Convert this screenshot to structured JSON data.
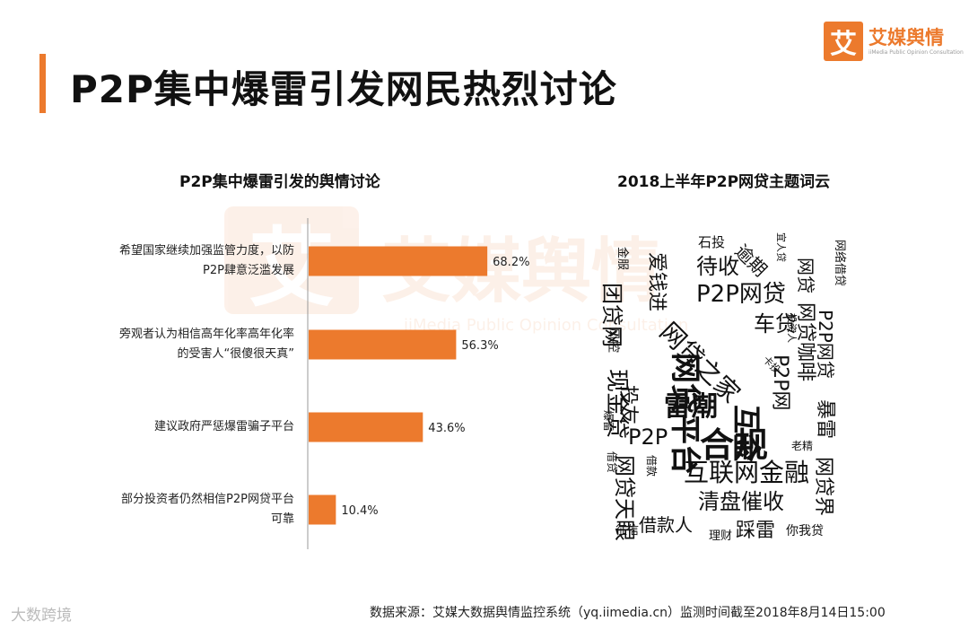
{
  "page": {
    "title": "P2P集中爆雷引发网民热烈讨论",
    "source": "数据来源：艾媒大数据舆情监控系统（yq.iimedia.cn）监测时间截至2018年8月14日15:00",
    "corner_mark": "大数跨境"
  },
  "logo": {
    "mark": "艾",
    "name": "艾媒舆情",
    "sub": "iiMedia Public Opinion Consultation"
  },
  "watermark": {
    "mark": "艾",
    "name": "艾媒舆情",
    "sub": "iiMedia Public Opinion Consultation"
  },
  "colors": {
    "accent": "#ec7a2d",
    "bar": "#ec7a2d",
    "axis": "#999999"
  },
  "chart_data": [
    {
      "type": "bar",
      "orientation": "horizontal",
      "title": "P2P集中爆雷引发的舆情讨论",
      "categories": [
        [
          "希望国家继续加强监管力度，以防",
          "P2P肆意泛滥发展"
        ],
        [
          "旁观者认为相信高年化率高年化率",
          "的受害人“很傻很天真”"
        ],
        [
          "建议政府严惩爆雷骗子平台"
        ],
        [
          "部分投资者仍然相信P2P网贷平台",
          "可靠"
        ]
      ],
      "values": [
        68.2,
        56.3,
        43.6,
        10.4
      ],
      "value_labels": [
        "68.2%",
        "56.3%",
        "43.6%",
        "10.4%"
      ],
      "xlim": [
        0,
        100
      ]
    },
    {
      "type": "wordcloud",
      "title": "2018上半年P2P网贷主题词云",
      "words": [
        "石投",
        "待收",
        "逾期",
        "宜人贷",
        "网络借贷",
        "网贷",
        "金服",
        "爱钱进",
        "P2P网贷",
        "网贷咖啡",
        "团贷网",
        "车贷",
        "P2P网贷",
        "风控",
        "网贷之家",
        "投资人",
        "卡投",
        "P2P网",
        "现金贷",
        "投友",
        "雷潮",
        "暴雷",
        "网贷平台",
        "P2P",
        "合规",
        "互金",
        "爆雷",
        "老精",
        "借贷",
        "借款",
        "互联网金融",
        "网贷天眼",
        "清盘催收",
        "网贷界",
        "借款人",
        "征信",
        "理财",
        "踩雷",
        "你我贷"
      ]
    }
  ]
}
